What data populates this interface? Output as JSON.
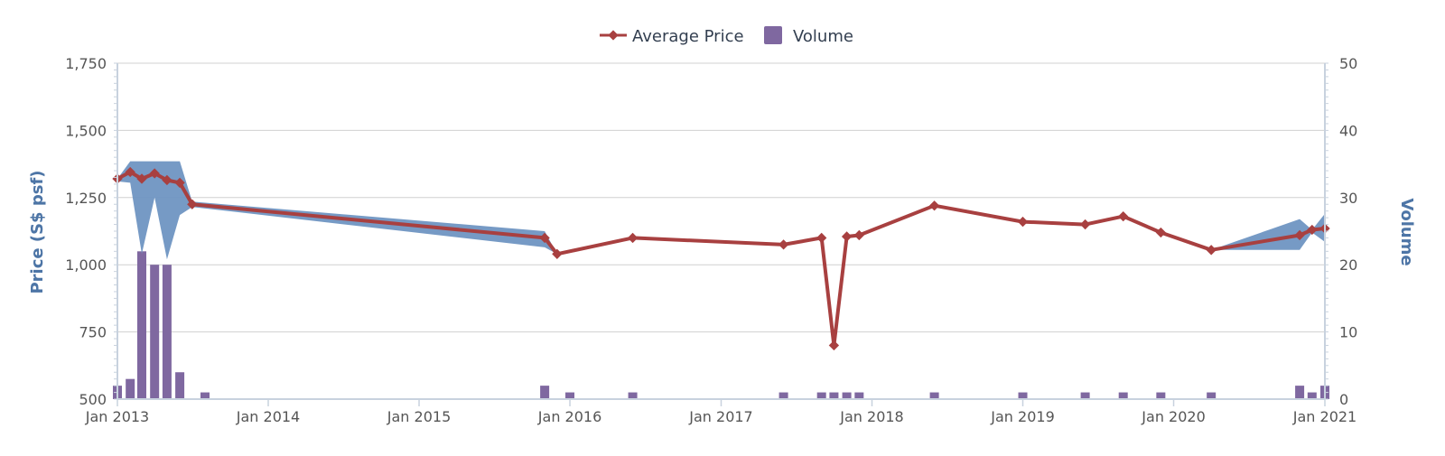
{
  "colors": {
    "price_line": "#a84040",
    "volume_bar": "#7f68a0",
    "range_area": "#6f95c2",
    "axis_title": "#4d75a6",
    "grid": "#d0d0d0",
    "axis_line": "#c8d2de"
  },
  "legend": {
    "items": [
      {
        "label": "Average Price",
        "icon": "line-diamond-icon"
      },
      {
        "label": "Volume",
        "icon": "square-icon"
      }
    ]
  },
  "chart_data": {
    "type": "line",
    "y_left_label": "Price (S$ psf)",
    "y_right_label": "Volume",
    "y_left_lim": [
      500,
      1750
    ],
    "y_left_ticks": [
      "500",
      "750",
      "1,000",
      "1,250",
      "1,500",
      "1,750"
    ],
    "y_right_lim": [
      0,
      50
    ],
    "y_right_ticks": [
      "0",
      "10",
      "20",
      "30",
      "40",
      "50"
    ],
    "x_lim": [
      "2013-01-01",
      "2021-01-01"
    ],
    "x_ticks": [
      "Jan 2013",
      "Jan 2014",
      "Jan 2015",
      "Jan 2016",
      "Jan 2017",
      "Jan 2018",
      "Jan 2019",
      "Jan 2020",
      "Jan 2021"
    ],
    "grid": true,
    "legend_position": "top-center",
    "series": [
      {
        "name": "Average Price",
        "type": "line",
        "points": [
          {
            "x": "2013-01",
            "y": 1320
          },
          {
            "x": "2013-02",
            "y": 1345
          },
          {
            "x": "2013-03",
            "y": 1320
          },
          {
            "x": "2013-04",
            "y": 1340
          },
          {
            "x": "2013-05",
            "y": 1315
          },
          {
            "x": "2013-06",
            "y": 1305
          },
          {
            "x": "2013-07",
            "y": 1225
          },
          {
            "x": "2015-11",
            "y": 1100
          },
          {
            "x": "2015-12",
            "y": 1040
          },
          {
            "x": "2016-06",
            "y": 1100
          },
          {
            "x": "2017-06",
            "y": 1075
          },
          {
            "x": "2017-09",
            "y": 1100
          },
          {
            "x": "2017-10",
            "y": 700
          },
          {
            "x": "2017-11",
            "y": 1105
          },
          {
            "x": "2017-12",
            "y": 1110
          },
          {
            "x": "2018-06",
            "y": 1220
          },
          {
            "x": "2019-01",
            "y": 1160
          },
          {
            "x": "2019-06",
            "y": 1150
          },
          {
            "x": "2019-09",
            "y": 1180
          },
          {
            "x": "2019-12",
            "y": 1120
          },
          {
            "x": "2020-04",
            "y": 1055
          },
          {
            "x": "2020-11",
            "y": 1110
          },
          {
            "x": "2020-12",
            "y": 1130
          },
          {
            "x": "2021-01",
            "y": 1135
          }
        ]
      },
      {
        "name": "Volume",
        "type": "bar",
        "points": [
          {
            "x": "2013-01",
            "y": 2
          },
          {
            "x": "2013-02",
            "y": 3
          },
          {
            "x": "2013-03",
            "y": 22
          },
          {
            "x": "2013-04",
            "y": 20
          },
          {
            "x": "2013-05",
            "y": 20
          },
          {
            "x": "2013-06",
            "y": 4
          },
          {
            "x": "2013-08",
            "y": 1
          },
          {
            "x": "2015-11",
            "y": 2
          },
          {
            "x": "2016-01",
            "y": 1
          },
          {
            "x": "2016-06",
            "y": 1
          },
          {
            "x": "2017-06",
            "y": 1
          },
          {
            "x": "2017-09",
            "y": 1
          },
          {
            "x": "2017-10",
            "y": 1
          },
          {
            "x": "2017-11",
            "y": 1
          },
          {
            "x": "2017-12",
            "y": 1
          },
          {
            "x": "2018-06",
            "y": 1
          },
          {
            "x": "2019-01",
            "y": 1
          },
          {
            "x": "2019-06",
            "y": 1
          },
          {
            "x": "2019-09",
            "y": 1
          },
          {
            "x": "2019-12",
            "y": 1
          },
          {
            "x": "2020-04",
            "y": 1
          },
          {
            "x": "2020-11",
            "y": 2
          },
          {
            "x": "2020-12",
            "y": 1
          },
          {
            "x": "2021-01",
            "y": 2
          }
        ]
      },
      {
        "type": "arearange",
        "points": [
          {
            "x": "2013-01",
            "low": 1310,
            "high": 1320
          },
          {
            "x": "2013-02",
            "low": 1305,
            "high": 1385
          },
          {
            "x": "2013-03",
            "low": 1040,
            "high": 1385
          },
          {
            "x": "2013-04",
            "low": 1250,
            "high": 1385
          },
          {
            "x": "2013-05",
            "low": 1020,
            "high": 1385
          },
          {
            "x": "2013-06",
            "low": 1185,
            "high": 1385
          },
          {
            "x": "2013-07",
            "low": 1215,
            "high": 1235
          },
          {
            "x": "2015-11",
            "low": 1065,
            "high": 1125
          },
          {
            "x": "2015-12",
            "low": 1040,
            "high": 1040
          },
          {
            "x": "2020-04",
            "low": 1055,
            "high": 1055
          },
          {
            "x": "2020-11",
            "low": 1055,
            "high": 1170
          },
          {
            "x": "2020-12",
            "low": 1120,
            "high": 1130
          },
          {
            "x": "2021-01",
            "low": 1085,
            "high": 1190
          }
        ]
      }
    ]
  }
}
